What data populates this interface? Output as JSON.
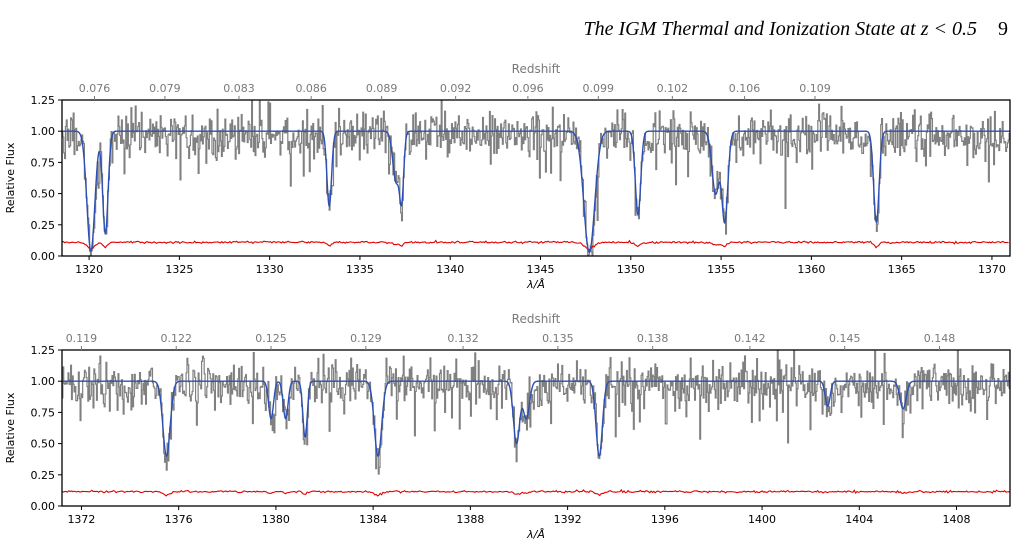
{
  "header": {
    "running_title": "The IGM Thermal and Ionization State at z < 0.5",
    "page_number": "9"
  },
  "chart_data": [
    {
      "type": "line",
      "panel": "top",
      "xlabel": "λ/Å",
      "ylabel": "Relative Flux",
      "top_axis_label": "Redshift",
      "xlim": [
        1318.5,
        1371.0
      ],
      "ylim": [
        0.0,
        1.25
      ],
      "x_ticks": [
        1320,
        1325,
        1330,
        1335,
        1340,
        1345,
        1350,
        1355,
        1360,
        1365,
        1370
      ],
      "y_ticks": [
        0.0,
        0.25,
        0.5,
        0.75,
        1.0,
        1.25
      ],
      "top_ticks": [
        {
          "x": 1320.3,
          "label": "0.076"
        },
        {
          "x": 1324.2,
          "label": "0.079"
        },
        {
          "x": 1328.3,
          "label": "0.083"
        },
        {
          "x": 1332.3,
          "label": "0.086"
        },
        {
          "x": 1336.2,
          "label": "0.089"
        },
        {
          "x": 1340.3,
          "label": "0.092"
        },
        {
          "x": 1344.3,
          "label": "0.096"
        },
        {
          "x": 1348.2,
          "label": "0.099"
        },
        {
          "x": 1352.3,
          "label": "0.102"
        },
        {
          "x": 1356.3,
          "label": "0.106"
        },
        {
          "x": 1360.2,
          "label": "0.109"
        }
      ],
      "legend": "none",
      "grid": false,
      "series": [
        {
          "role": "data flux",
          "color": "#808080",
          "continuum": 0.97,
          "noise_sigma": 0.09
        },
        {
          "role": "model fit",
          "color": "#2c4fb3",
          "continuum": 1.0
        },
        {
          "role": "error",
          "color": "#e00000",
          "level": 0.11
        }
      ],
      "absorption_lines": [
        {
          "center": 1320.1,
          "depth": 0.96,
          "width": 0.22
        },
        {
          "center": 1320.9,
          "depth": 0.82,
          "width": 0.15
        },
        {
          "center": 1333.3,
          "depth": 0.6,
          "width": 0.13
        },
        {
          "center": 1337.0,
          "depth": 0.4,
          "width": 0.18
        },
        {
          "center": 1337.3,
          "depth": 0.55,
          "width": 0.12
        },
        {
          "center": 1347.7,
          "depth": 0.97,
          "width": 0.3
        },
        {
          "center": 1350.4,
          "depth": 0.67,
          "width": 0.15
        },
        {
          "center": 1354.7,
          "depth": 0.5,
          "width": 0.2
        },
        {
          "center": 1355.2,
          "depth": 0.73,
          "width": 0.17
        },
        {
          "center": 1363.6,
          "depth": 0.73,
          "width": 0.15
        }
      ]
    },
    {
      "type": "line",
      "panel": "bottom",
      "xlabel": "λ/Å",
      "ylabel": "Relative Flux",
      "top_axis_label": "Redshift",
      "xlim": [
        1371.2,
        1410.2
      ],
      "ylim": [
        0.0,
        1.25
      ],
      "x_ticks": [
        1372,
        1376,
        1380,
        1384,
        1388,
        1392,
        1396,
        1400,
        1404,
        1408
      ],
      "y_ticks": [
        0.0,
        0.25,
        0.5,
        0.75,
        1.0,
        1.25
      ],
      "top_ticks": [
        {
          "x": 1372.0,
          "label": "0.119"
        },
        {
          "x": 1375.9,
          "label": "0.122"
        },
        {
          "x": 1379.8,
          "label": "0.125"
        },
        {
          "x": 1383.7,
          "label": "0.129"
        },
        {
          "x": 1387.7,
          "label": "0.132"
        },
        {
          "x": 1391.6,
          "label": "0.135"
        },
        {
          "x": 1395.5,
          "label": "0.138"
        },
        {
          "x": 1399.5,
          "label": "0.142"
        },
        {
          "x": 1403.4,
          "label": "0.145"
        },
        {
          "x": 1407.3,
          "label": "0.148"
        }
      ],
      "legend": "none",
      "grid": false,
      "series": [
        {
          "role": "data flux",
          "color": "#808080",
          "continuum": 0.97,
          "noise_sigma": 0.09
        },
        {
          "role": "model fit",
          "color": "#2c4fb3",
          "continuum": 1.0
        },
        {
          "role": "error",
          "color": "#e00000",
          "level": 0.115
        }
      ],
      "absorption_lines": [
        {
          "center": 1375.5,
          "depth": 0.6,
          "width": 0.15
        },
        {
          "center": 1379.8,
          "depth": 0.3,
          "width": 0.1
        },
        {
          "center": 1380.4,
          "depth": 0.3,
          "width": 0.1
        },
        {
          "center": 1381.2,
          "depth": 0.45,
          "width": 0.09
        },
        {
          "center": 1384.2,
          "depth": 0.6,
          "width": 0.15
        },
        {
          "center": 1389.9,
          "depth": 0.5,
          "width": 0.13
        },
        {
          "center": 1390.3,
          "depth": 0.3,
          "width": 0.13
        },
        {
          "center": 1393.3,
          "depth": 0.6,
          "width": 0.13
        },
        {
          "center": 1402.7,
          "depth": 0.2,
          "width": 0.1
        },
        {
          "center": 1405.8,
          "depth": 0.22,
          "width": 0.13
        }
      ]
    }
  ]
}
